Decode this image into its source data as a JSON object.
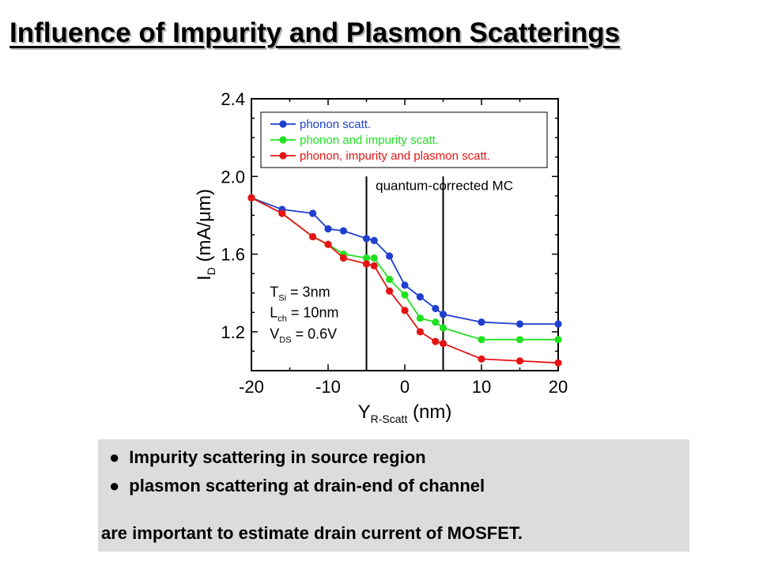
{
  "title": "Influence of Impurity and Plasmon Scatterings",
  "chart_data": {
    "type": "line",
    "xlabel": "Y",
    "xlabel_sub": "R-Scatt",
    "xlabel_unit": "(nm)",
    "ylabel": "I",
    "ylabel_sub": "D",
    "ylabel_unit": "(mA/μm)",
    "xlim": [
      -20,
      20
    ],
    "ylim": [
      1.0,
      2.4
    ],
    "xticks": [
      -20,
      -10,
      0,
      10,
      20
    ],
    "xtick_labels": [
      "-20",
      "-10",
      "0",
      "10",
      "20"
    ],
    "yticks": [
      1.2,
      1.6,
      2.0,
      2.4
    ],
    "ytick_labels": [
      "1.2",
      "1.6",
      "2.0",
      "2.4"
    ],
    "vlines": [
      -5,
      5
    ],
    "region_label": "quantum-corrected MC",
    "legend_position": "top",
    "params": [
      {
        "sym": "T",
        "sub": "Si",
        "val": " = 3nm"
      },
      {
        "sym": "L",
        "sub": "ch",
        "val": " = 10nm"
      },
      {
        "sym": "V",
        "sub": "DS",
        "val": " = 0.6V"
      }
    ],
    "series": [
      {
        "name": "phonon scatt.",
        "color": "#1f3fd0",
        "x": [
          -20,
          -16,
          -12,
          -10,
          -8,
          -5,
          -4,
          -2,
          0,
          2,
          4,
          5,
          10,
          15,
          20
        ],
        "y": [
          1.89,
          1.83,
          1.81,
          1.73,
          1.72,
          1.68,
          1.67,
          1.59,
          1.44,
          1.38,
          1.32,
          1.29,
          1.25,
          1.24,
          1.24
        ]
      },
      {
        "name": "phonon and impurity scatt.",
        "color": "#1fe11f",
        "x": [
          -20,
          -16,
          -12,
          -10,
          -8,
          -5,
          -4,
          -2,
          0,
          2,
          4,
          5,
          10,
          15,
          20
        ],
        "y": [
          1.89,
          1.81,
          1.69,
          1.65,
          1.6,
          1.58,
          1.58,
          1.47,
          1.39,
          1.27,
          1.25,
          1.22,
          1.16,
          1.16,
          1.16
        ]
      },
      {
        "name": "phonon, impurity and plasmon scatt.",
        "color": "#e51414",
        "x": [
          -20,
          -16,
          -12,
          -10,
          -8,
          -5,
          -4,
          -2,
          0,
          2,
          4,
          5,
          10,
          15,
          20
        ],
        "y": [
          1.89,
          1.81,
          1.69,
          1.65,
          1.58,
          1.55,
          1.54,
          1.41,
          1.31,
          1.2,
          1.15,
          1.14,
          1.06,
          1.05,
          1.04
        ]
      }
    ]
  },
  "notes": {
    "bullet_glyph": "●",
    "bullets": [
      "Impurity scattering in source region",
      "plasmon scattering at drain-end of channel"
    ],
    "conclusion": "are important to estimate drain current of MOSFET."
  }
}
